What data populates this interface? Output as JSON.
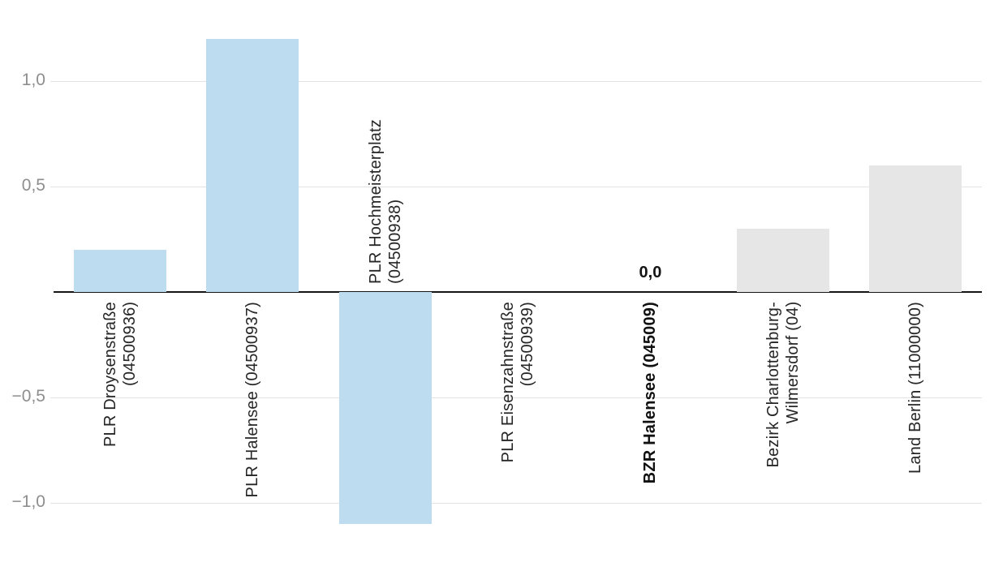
{
  "chart_data": {
    "type": "bar",
    "title": "",
    "xlabel": "",
    "ylabel": "",
    "ylim": [
      -1.35,
      1.35
    ],
    "grid": "horizontal",
    "legend": "none",
    "decimal_format": "comma",
    "y_ticks": [
      {
        "value": 1.0,
        "label": "1,0"
      },
      {
        "value": 0.5,
        "label": "0,5"
      },
      {
        "value": -0.5,
        "label": "−0,5"
      },
      {
        "value": -1.0,
        "label": "−1,0"
      }
    ],
    "categories": [
      "PLR Droysenstraße (04500936)",
      "PLR Halensee (04500937)",
      "PLR Hochmeisterplatz (04500938)",
      "PLR Eisenzahnstraße (04500939)",
      "BZR Halensee (045009)",
      "Bezirk Charlottenburg-Wilmersdorf (04)",
      "Land Berlin (11000000)"
    ],
    "values": [
      0.2,
      1.2,
      -1.1,
      0.0,
      0.0,
      0.3,
      0.6
    ],
    "bars": [
      {
        "category": "PLR Droysenstraße (04500936)",
        "label_lines": [
          "PLR Droysenstraße",
          "(04500936)"
        ],
        "value": 0.2,
        "color_key": "blue",
        "bold": false
      },
      {
        "category": "PLR Halensee (04500937)",
        "label_lines": [
          "PLR Halensee (04500937)"
        ],
        "value": 1.2,
        "color_key": "blue",
        "bold": false
      },
      {
        "category": "PLR Hochmeisterplatz (04500938)",
        "label_lines": [
          "PLR Hochmeisterplatz",
          "(04500938)"
        ],
        "value": -1.1,
        "color_key": "blue",
        "bold": false
      },
      {
        "category": "PLR Eisenzahnstraße (04500939)",
        "label_lines": [
          "PLR Eisenzahnstraße",
          "(04500939)"
        ],
        "value": 0.0,
        "color_key": "blue",
        "bold": false
      },
      {
        "category": "BZR Halensee (045009)",
        "label_lines": [
          "BZR Halensee (045009)"
        ],
        "value": 0.0,
        "color_key": "blue",
        "bold": true,
        "data_label": "0,0"
      },
      {
        "category": "Bezirk Charlottenburg-Wilmersdorf (04)",
        "label_lines": [
          "Bezirk Charlottenburg-",
          "Wilmersdorf (04)"
        ],
        "value": 0.3,
        "color_key": "gray",
        "bold": false
      },
      {
        "category": "Land Berlin (11000000)",
        "label_lines": [
          "Land Berlin (11000000)"
        ],
        "value": 0.6,
        "color_key": "gray",
        "bold": false
      }
    ],
    "colors": {
      "blue": "#bddcf0",
      "gray": "#e6e6e6",
      "grid": "#e3e3e3",
      "axis": "#161616",
      "tick_label": "#8e8e8e",
      "category_label": "#262626"
    }
  }
}
